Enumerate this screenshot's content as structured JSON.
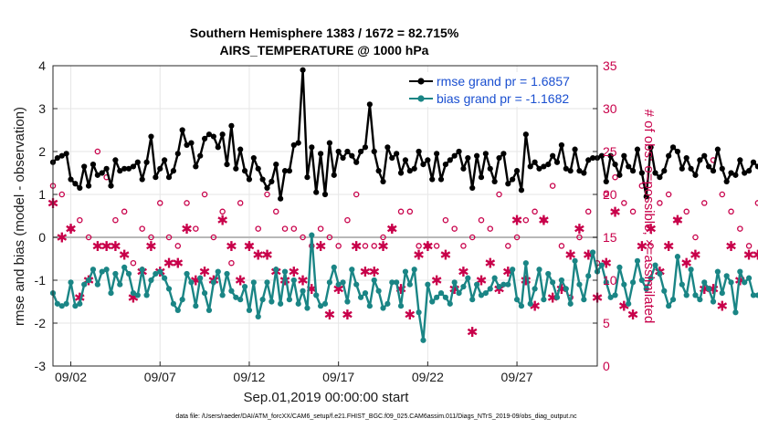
{
  "chart_data": {
    "type": "line",
    "title": "Southern Hemisphere 1383 / 1672 = 82.715%",
    "subtitle": "AIRS_TEMPERATURE @ 1000 hPa",
    "xlabel": "Sep.01,2019 00:00:00 start",
    "ylabel": "rmse and bias (model - observation)",
    "y2label": "# of obs: o=possible; ×=assimilated",
    "ylim": [
      -3,
      4
    ],
    "y2lim": [
      0,
      35
    ],
    "xlim": [
      1,
      31.5
    ],
    "yticks": [
      "4",
      "3",
      "2",
      "1",
      "0",
      "-1",
      "-2",
      "-3"
    ],
    "y2ticks": [
      "35",
      "30",
      "25",
      "20",
      "15",
      "10",
      "5",
      "0"
    ],
    "xtick_positions": [
      2,
      7,
      12,
      17,
      22,
      27
    ],
    "xtick_labels": [
      "09/02",
      "09/07",
      "09/12",
      "09/17",
      "09/22",
      "09/27"
    ],
    "grid": true,
    "legend_position": "top-right",
    "footnote": "data file: /Users/raeder/DAI/ATM_forcXX/CAM6_setup/f.e21.FHIST_BGC.f09_025.CAM6assim.011/Diags_NTrS_2019-09/obs_diag_output.nc",
    "colors": {
      "rmse": "#000000",
      "bias": "#1a8585",
      "obs": "#c8004a",
      "zero_line": "#b8b8b8",
      "legend_text": "#1a4fd0"
    },
    "series": [
      {
        "name": "rmse grand pr = 1.6857",
        "key": "rmse",
        "x_start": 1.0,
        "x_step": 0.25,
        "values": [
          1.75,
          1.85,
          1.9,
          1.95,
          1.35,
          1.25,
          1.15,
          1.65,
          1.2,
          1.7,
          1.45,
          1.5,
          1.6,
          1.2,
          1.8,
          1.55,
          1.6,
          1.6,
          1.65,
          1.75,
          1.35,
          1.75,
          2.35,
          1.4,
          1.6,
          1.8,
          1.4,
          1.55,
          1.95,
          2.5,
          2.15,
          2.2,
          1.65,
          1.9,
          2.3,
          2.4,
          2.35,
          2.1,
          2.4,
          1.7,
          2.6,
          1.6,
          2.05,
          1.55,
          1.35,
          1.85,
          1.6,
          1.35,
          1.15,
          1.3,
          1.7,
          0.9,
          1.55,
          1.55,
          2.15,
          2.2,
          3.9,
          1.4,
          2.1,
          1.05,
          1.95,
          1.0,
          2.2,
          1.45,
          2.0,
          1.85,
          2.0,
          1.9,
          1.75,
          2.0,
          2.1,
          3.1,
          2.0,
          1.55,
          1.3,
          2.1,
          1.85,
          1.95,
          1.5,
          1.8,
          1.55,
          1.6,
          2.0,
          1.7,
          1.8,
          1.35,
          1.95,
          1.35,
          1.7,
          1.8,
          1.9,
          2.0,
          1.6,
          1.85,
          1.15,
          1.9,
          1.4,
          1.95,
          1.6,
          1.3,
          1.85,
          1.95,
          1.25,
          1.35,
          1.55,
          1.1,
          2.4,
          1.65,
          1.75,
          1.6,
          1.65,
          1.7,
          1.9,
          1.75,
          2.15,
          1.6,
          1.55,
          2.05,
          1.55,
          1.5,
          1.8,
          1.85,
          1.85,
          1.9,
          1.3,
          1.9,
          1.7,
          1.45,
          1.9,
          1.65,
          1.55,
          2.05,
          1.5,
          0.95,
          2.1,
          1.5,
          1.4,
          1.55,
          1.9,
          2.1,
          2.0,
          1.6,
          1.85,
          1.6,
          1.45,
          1.8,
          1.9,
          1.65,
          1.55,
          2.05,
          1.6,
          1.3,
          1.5,
          1.45,
          1.8,
          1.5,
          1.55,
          1.75,
          1.65,
          1.55,
          2.0,
          1.8,
          2.25,
          1.85,
          2.1,
          2.05,
          1.5,
          2.3,
          1.4,
          1.75,
          2.0,
          1.5,
          1.55,
          1.5,
          1.85,
          2.5,
          1.55,
          1.55,
          1.5,
          1.45
        ]
      },
      {
        "name": "bias grand pr = -1.1682",
        "key": "bias",
        "x_start": 1.0,
        "x_step": 0.25,
        "values": [
          -1.3,
          -1.55,
          -1.6,
          -1.55,
          -1.05,
          -1.6,
          -1.55,
          -1.1,
          -1.0,
          -0.75,
          -1.1,
          -0.8,
          -0.75,
          -1.3,
          -0.85,
          -1.1,
          -0.7,
          -0.85,
          -1.3,
          -1.35,
          -0.75,
          -1.35,
          -1.0,
          -0.85,
          -0.8,
          -0.95,
          -1.2,
          -1.55,
          -1.7,
          -1.45,
          -0.85,
          -1.05,
          -1.6,
          -0.95,
          -1.3,
          -1.7,
          -1.05,
          -0.8,
          -1.35,
          -0.85,
          -1.25,
          -1.4,
          -1.45,
          -1.15,
          -1.7,
          -1.05,
          -1.85,
          -1.45,
          -1.05,
          -1.5,
          -0.75,
          -1.55,
          -0.8,
          -1.45,
          -1.0,
          -1.55,
          -1.25,
          -1.65,
          0.05,
          -1.35,
          -1.6,
          -1.55,
          -1.05,
          -0.7,
          -1.1,
          -1.05,
          -1.5,
          -0.75,
          -1.1,
          -1.4,
          -1.3,
          -1.6,
          -1.0,
          -1.25,
          -1.65,
          -1.55,
          -1.05,
          -1.05,
          -1.6,
          -0.8,
          -1.1,
          -0.75,
          -1.75,
          -2.4,
          -1.1,
          -1.5,
          -1.4,
          -1.3,
          -1.4,
          -1.55,
          -1.05,
          -1.3,
          -1.15,
          -0.95,
          -1.45,
          -1.1,
          -1.35,
          -1.3,
          -1.2,
          -0.95,
          -1.15,
          -1.1,
          -1.1,
          -0.75,
          -1.45,
          -1.6,
          -0.6,
          -1.55,
          -1.2,
          -0.75,
          -1.45,
          -0.85,
          -1.05,
          -1.4,
          -1.0,
          -1.2,
          -1.55,
          -0.55,
          -1.1,
          -1.45,
          -0.9,
          -0.35,
          -0.8,
          -0.65,
          -1.05,
          -1.4,
          -1.35,
          -0.7,
          -1.1,
          -1.55,
          -1.05,
          -0.55,
          -1.0,
          -1.2,
          -0.95,
          -0.65,
          -0.85,
          -1.25,
          -1.6,
          -1.45,
          -0.45,
          -1.1,
          -1.35,
          -0.75,
          -1.35,
          -1.45,
          -1.05,
          -1.2,
          -1.5,
          -0.8,
          -1.3,
          -0.9,
          -1.05,
          -1.75,
          -0.8,
          -1.05,
          -0.95,
          -1.35,
          -1.35,
          -1.25,
          -1.7,
          -0.9,
          -1.3,
          -0.95,
          -1.55,
          -1.2,
          -1.65,
          -1.0,
          -1.25,
          -0.85,
          -1.25,
          -1.05,
          -1.55,
          -1.4,
          -0.8,
          -1.05,
          -1.9,
          -1.45,
          -0.65,
          -0.9,
          -1.0,
          -1.0
        ]
      },
      {
        "name": "possible",
        "key": "possible",
        "axis": "right",
        "x_start": 1.0,
        "x_step": 0.5,
        "values": [
          21,
          20,
          16,
          17,
          15,
          25,
          22,
          17,
          18,
          12,
          16,
          15,
          19,
          15,
          14,
          19,
          16,
          20,
          15,
          18,
          12,
          19,
          14,
          16,
          20,
          18,
          16,
          16,
          15,
          14,
          16,
          15,
          14,
          17,
          20,
          14,
          14,
          15,
          16,
          18,
          18,
          14,
          14,
          14,
          17,
          16,
          14,
          15,
          17,
          16,
          20,
          14,
          15,
          17,
          18,
          17,
          21,
          14,
          8,
          15,
          18,
          12,
          20,
          22,
          19,
          18,
          21,
          14,
          19,
          20,
          17,
          18,
          15,
          19,
          24,
          20,
          18,
          16,
          14,
          19,
          14,
          19,
          16,
          14,
          13,
          16,
          20,
          15,
          16,
          18,
          18,
          14,
          21,
          17,
          18,
          25,
          16,
          13,
          22,
          14,
          21,
          14,
          25,
          17,
          17,
          15,
          16,
          14,
          16,
          14,
          17,
          22,
          14,
          14,
          22,
          15,
          14,
          15,
          20,
          25,
          15,
          14,
          14
        ]
      },
      {
        "name": "assimilated",
        "key": "assimilated",
        "axis": "right",
        "x_start": 1.0,
        "x_step": 0.5,
        "values": [
          19,
          15,
          16,
          8,
          10,
          14,
          14,
          14,
          13,
          8,
          11,
          14,
          11,
          12,
          12,
          16,
          10,
          11,
          10,
          17,
          14,
          10,
          14,
          13,
          13,
          11,
          10,
          11,
          10,
          9,
          14,
          6,
          9,
          6,
          14,
          11,
          11,
          14,
          16,
          9,
          6,
          13,
          14,
          10,
          13,
          9,
          11,
          4,
          10,
          12,
          9,
          11,
          17,
          10,
          7,
          17,
          8,
          9,
          13,
          16,
          13,
          8,
          12,
          18,
          7,
          6,
          14,
          16,
          11,
          14,
          17,
          12,
          13,
          9,
          9,
          7,
          14,
          10,
          13,
          13,
          11,
          12,
          14,
          13,
          14,
          16,
          10,
          9,
          10,
          11,
          13,
          12,
          5,
          11,
          16,
          13,
          10,
          11,
          15,
          12,
          14,
          14,
          11,
          9,
          12,
          14,
          13,
          15,
          8,
          7,
          14,
          11,
          13,
          9,
          16,
          14,
          16,
          12,
          11,
          8,
          12,
          10,
          9
        ]
      }
    ]
  }
}
